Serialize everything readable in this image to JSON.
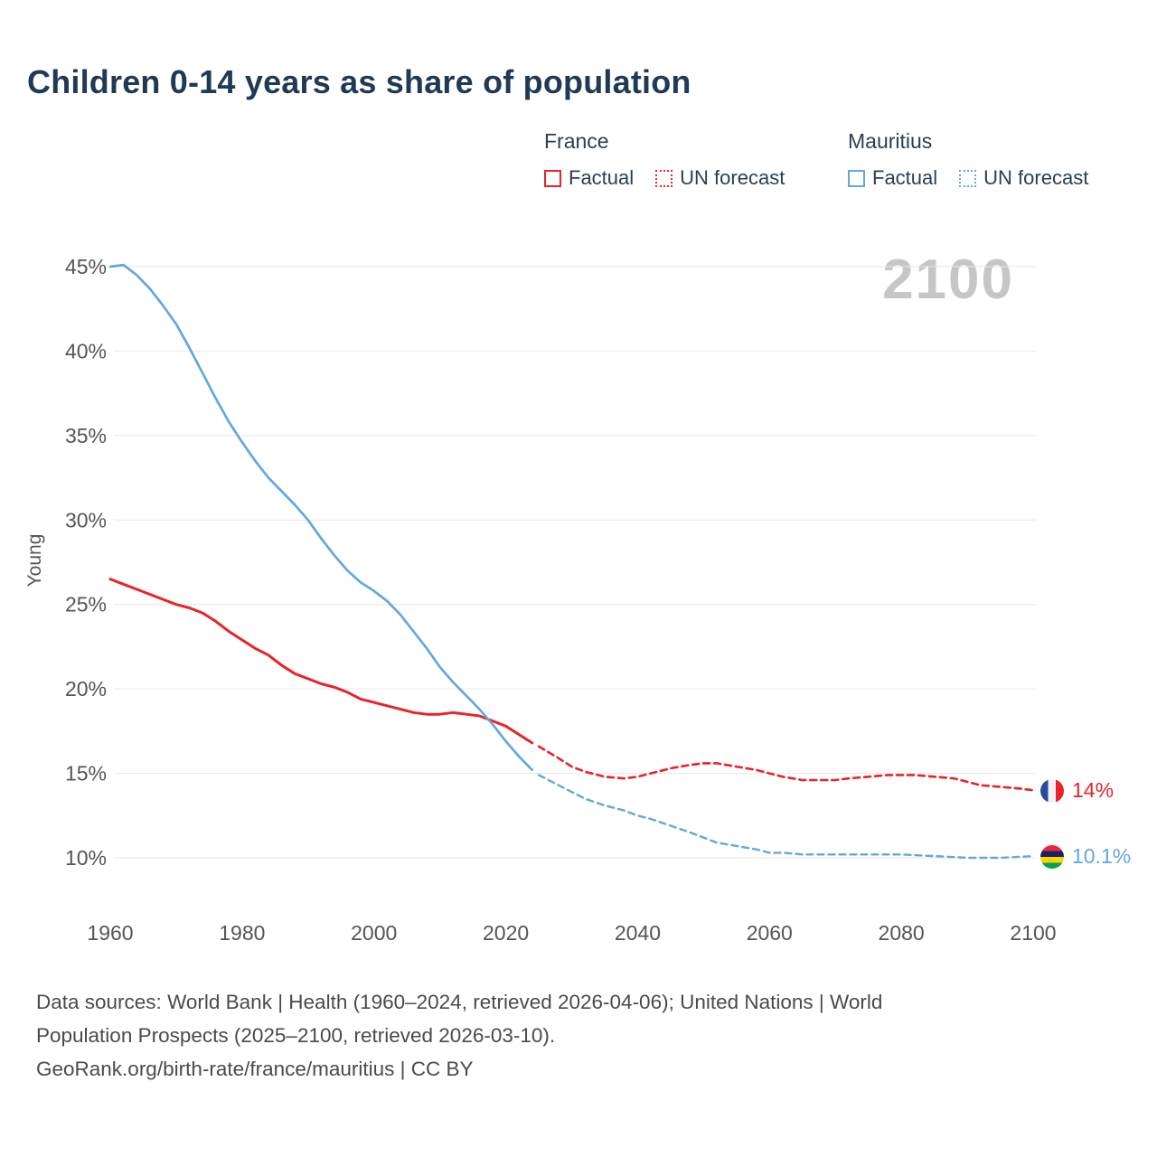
{
  "title": "Children 0-14 years as share of population",
  "watermark": "2100",
  "colors": {
    "france": "#e8232a",
    "mauritius": "#63a8dc",
    "title": "#1f3a55",
    "axis_text": "#555555",
    "grid": "#e7e7e7",
    "watermark": "#c6c6c6",
    "footer_text": "#4a4a4a"
  },
  "legend": {
    "groups": [
      {
        "name": "France",
        "color": "#e8232a",
        "items": [
          {
            "label": "Factual",
            "style": "solid"
          },
          {
            "label": "UN forecast",
            "style": "dotted"
          }
        ]
      },
      {
        "name": "Mauritius",
        "color": "#63a8dc",
        "items": [
          {
            "label": "Factual",
            "style": "solid"
          },
          {
            "label": "UN forecast",
            "style": "dotted"
          }
        ]
      }
    ]
  },
  "end_labels": [
    {
      "series": "France",
      "flag": "france-flag",
      "label": "14%"
    },
    {
      "series": "Mauritius",
      "flag": "mauritius-flag",
      "label": "10.1%"
    }
  ],
  "footer": {
    "lines": [
      "Data sources: World Bank | Health (1960–2024, retrieved 2026-04-06); United Nations | World",
      "Population Prospects (2025–2100, retrieved 2026-03-10).",
      "GeoRank.org/birth-rate/france/mauritius | CC BY"
    ]
  },
  "chart_data": {
    "type": "line",
    "title": "Children 0-14 years as share of population",
    "xlabel": "",
    "ylabel": "Young",
    "xlim": [
      1960,
      2100
    ],
    "ylim": [
      10,
      45
    ],
    "grid": "horizontal",
    "legend_position": "top-right",
    "xticks": [
      1960,
      1980,
      2000,
      2020,
      2040,
      2060,
      2080,
      2100
    ],
    "yticks": [
      {
        "value": 10,
        "label": "10%"
      },
      {
        "value": 15,
        "label": "15%"
      },
      {
        "value": 20,
        "label": "20%"
      },
      {
        "value": 25,
        "label": "25%"
      },
      {
        "value": 30,
        "label": "30%"
      },
      {
        "value": 35,
        "label": "35%"
      },
      {
        "value": 40,
        "label": "40%"
      },
      {
        "value": 45,
        "label": "45%"
      }
    ],
    "series": [
      {
        "name": "France Factual",
        "color": "#e8232a",
        "dash": "solid",
        "width": 3,
        "x": [
          1960,
          1962,
          1964,
          1966,
          1968,
          1970,
          1972,
          1974,
          1976,
          1978,
          1980,
          1982,
          1984,
          1986,
          1988,
          1990,
          1992,
          1994,
          1996,
          1998,
          2000,
          2002,
          2004,
          2006,
          2008,
          2010,
          2012,
          2014,
          2016,
          2018,
          2020,
          2022,
          2024
        ],
        "y": [
          26.5,
          26.2,
          25.9,
          25.6,
          25.3,
          25.0,
          24.8,
          24.5,
          24.0,
          23.4,
          22.9,
          22.4,
          22.0,
          21.4,
          20.9,
          20.6,
          20.3,
          20.1,
          19.8,
          19.4,
          19.2,
          19.0,
          18.8,
          18.6,
          18.5,
          18.5,
          18.6,
          18.5,
          18.4,
          18.1,
          17.8,
          17.3,
          16.8
        ]
      },
      {
        "name": "France UN forecast",
        "color": "#e8232a",
        "dash": "dashed",
        "width": 2.6,
        "x": [
          2025,
          2028,
          2030,
          2032,
          2035,
          2038,
          2040,
          2042,
          2045,
          2048,
          2050,
          2052,
          2055,
          2058,
          2060,
          2062,
          2065,
          2068,
          2070,
          2072,
          2075,
          2078,
          2080,
          2082,
          2085,
          2088,
          2090,
          2092,
          2095,
          2098,
          2100
        ],
        "y": [
          16.6,
          15.9,
          15.4,
          15.1,
          14.8,
          14.7,
          14.8,
          15.0,
          15.3,
          15.5,
          15.6,
          15.6,
          15.4,
          15.2,
          15.0,
          14.8,
          14.6,
          14.6,
          14.6,
          14.7,
          14.8,
          14.9,
          14.9,
          14.9,
          14.8,
          14.7,
          14.5,
          14.3,
          14.2,
          14.1,
          14.0
        ]
      },
      {
        "name": "Mauritius Factual",
        "color": "#63a8dc",
        "dash": "solid",
        "width": 2.7,
        "x": [
          1960,
          1962,
          1964,
          1966,
          1968,
          1970,
          1972,
          1974,
          1976,
          1978,
          1980,
          1982,
          1984,
          1986,
          1988,
          1990,
          1992,
          1994,
          1996,
          1998,
          2000,
          2002,
          2004,
          2006,
          2008,
          2010,
          2012,
          2014,
          2016,
          2018,
          2020,
          2022,
          2024
        ],
        "y": [
          45.0,
          45.1,
          44.5,
          43.7,
          42.7,
          41.6,
          40.2,
          38.7,
          37.2,
          35.8,
          34.6,
          33.5,
          32.5,
          31.7,
          30.9,
          30.0,
          28.9,
          27.9,
          27.0,
          26.3,
          25.8,
          25.2,
          24.4,
          23.4,
          22.4,
          21.3,
          20.4,
          19.6,
          18.8,
          17.9,
          16.9,
          16.0,
          15.2
        ]
      },
      {
        "name": "Mauritius UN forecast",
        "color": "#63a8dc",
        "dash": "dashed",
        "width": 2.4,
        "x": [
          2025,
          2028,
          2030,
          2032,
          2035,
          2038,
          2040,
          2042,
          2045,
          2048,
          2050,
          2052,
          2055,
          2058,
          2060,
          2062,
          2065,
          2070,
          2075,
          2080,
          2085,
          2090,
          2095,
          2100
        ],
        "y": [
          14.9,
          14.3,
          13.9,
          13.5,
          13.1,
          12.8,
          12.5,
          12.3,
          11.9,
          11.5,
          11.2,
          10.9,
          10.7,
          10.5,
          10.3,
          10.3,
          10.2,
          10.2,
          10.2,
          10.2,
          10.1,
          10.0,
          10.0,
          10.1
        ]
      }
    ]
  }
}
